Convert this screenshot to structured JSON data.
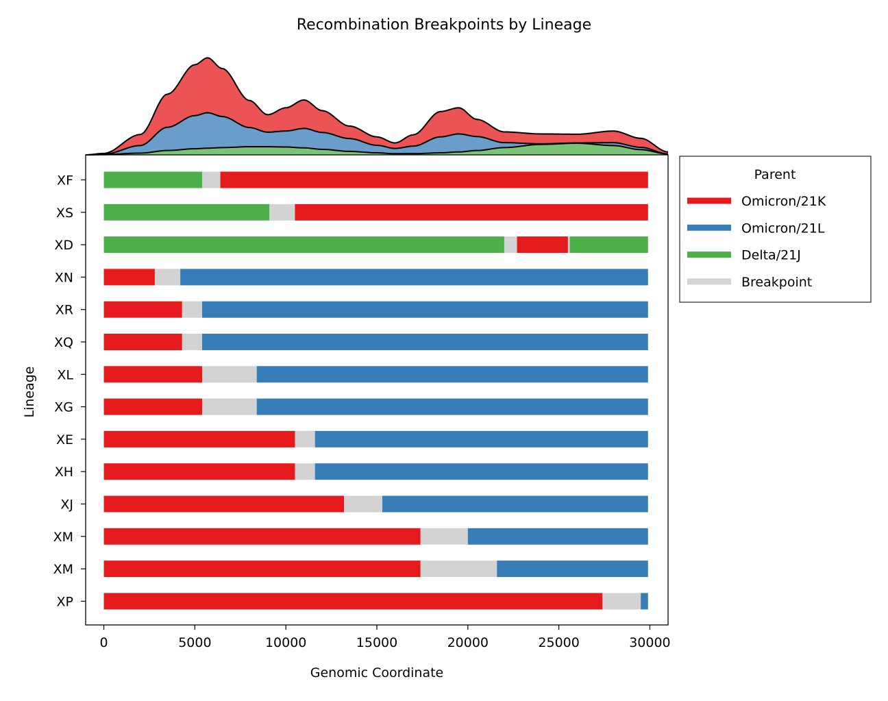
{
  "chart_data": {
    "type": "bar",
    "orientation": "horizontal-stacked",
    "title": "Recombination Breakpoints by Lineage",
    "xlabel": "Genomic Coordinate",
    "ylabel": "Lineage",
    "xlim": [
      -1000,
      31000
    ],
    "xticks": [
      0,
      5000,
      10000,
      15000,
      20000,
      25000,
      30000
    ],
    "grid": false,
    "legend": {
      "title": "Parent",
      "placement": "outside-right",
      "entries": [
        {
          "key": "21K",
          "label": "Omicron/21K"
        },
        {
          "key": "21L",
          "label": "Omicron/21L"
        },
        {
          "key": "21J",
          "label": "Delta/21J"
        },
        {
          "key": "bp",
          "label": "Breakpoint"
        }
      ]
    },
    "colors": {
      "21K": "#e41a1c",
      "21L": "#377eb8",
      "21J": "#4daf4a",
      "bp": "#d3d3d3"
    },
    "lineages": [
      {
        "name": "XF",
        "segments": [
          {
            "parent": "21J",
            "start": 0,
            "end": 5400
          },
          {
            "parent": "bp",
            "start": 5400,
            "end": 6400
          },
          {
            "parent": "21K",
            "start": 6400,
            "end": 29900
          }
        ]
      },
      {
        "name": "XS",
        "segments": [
          {
            "parent": "21J",
            "start": 0,
            "end": 9100
          },
          {
            "parent": "bp",
            "start": 9100,
            "end": 10500
          },
          {
            "parent": "21K",
            "start": 10500,
            "end": 29900
          }
        ]
      },
      {
        "name": "XD",
        "segments": [
          {
            "parent": "21J",
            "start": 0,
            "end": 22000
          },
          {
            "parent": "bp",
            "start": 22000,
            "end": 22700
          },
          {
            "parent": "21K",
            "start": 22700,
            "end": 25500
          },
          {
            "parent": "bp",
            "start": 25500,
            "end": 25600
          },
          {
            "parent": "21J",
            "start": 25600,
            "end": 29900
          }
        ]
      },
      {
        "name": "XN",
        "segments": [
          {
            "parent": "21K",
            "start": 0,
            "end": 2800
          },
          {
            "parent": "bp",
            "start": 2800,
            "end": 4200
          },
          {
            "parent": "21L",
            "start": 4200,
            "end": 29900
          }
        ]
      },
      {
        "name": "XR",
        "segments": [
          {
            "parent": "21K",
            "start": 0,
            "end": 4300
          },
          {
            "parent": "bp",
            "start": 4300,
            "end": 5400
          },
          {
            "parent": "21L",
            "start": 5400,
            "end": 29900
          }
        ]
      },
      {
        "name": "XQ",
        "segments": [
          {
            "parent": "21K",
            "start": 0,
            "end": 4300
          },
          {
            "parent": "bp",
            "start": 4300,
            "end": 5400
          },
          {
            "parent": "21L",
            "start": 5400,
            "end": 29900
          }
        ]
      },
      {
        "name": "XL",
        "segments": [
          {
            "parent": "21K",
            "start": 0,
            "end": 5400
          },
          {
            "parent": "bp",
            "start": 5400,
            "end": 8400
          },
          {
            "parent": "21L",
            "start": 8400,
            "end": 29900
          }
        ]
      },
      {
        "name": "XG",
        "segments": [
          {
            "parent": "21K",
            "start": 0,
            "end": 5400
          },
          {
            "parent": "bp",
            "start": 5400,
            "end": 8400
          },
          {
            "parent": "21L",
            "start": 8400,
            "end": 29900
          }
        ]
      },
      {
        "name": "XE",
        "segments": [
          {
            "parent": "21K",
            "start": 0,
            "end": 10500
          },
          {
            "parent": "bp",
            "start": 10500,
            "end": 11600
          },
          {
            "parent": "21L",
            "start": 11600,
            "end": 29900
          }
        ]
      },
      {
        "name": "XH",
        "segments": [
          {
            "parent": "21K",
            "start": 0,
            "end": 10500
          },
          {
            "parent": "bp",
            "start": 10500,
            "end": 11600
          },
          {
            "parent": "21L",
            "start": 11600,
            "end": 29900
          }
        ]
      },
      {
        "name": "XJ",
        "segments": [
          {
            "parent": "21K",
            "start": 0,
            "end": 13200
          },
          {
            "parent": "bp",
            "start": 13200,
            "end": 15300
          },
          {
            "parent": "21L",
            "start": 15300,
            "end": 29900
          }
        ]
      },
      {
        "name": "XM",
        "segments": [
          {
            "parent": "21K",
            "start": 0,
            "end": 17400
          },
          {
            "parent": "bp",
            "start": 17400,
            "end": 20000
          },
          {
            "parent": "21L",
            "start": 20000,
            "end": 29900
          }
        ]
      },
      {
        "name": "XM",
        "segments": [
          {
            "parent": "21K",
            "start": 0,
            "end": 17400
          },
          {
            "parent": "bp",
            "start": 17400,
            "end": 21600
          },
          {
            "parent": "21L",
            "start": 21600,
            "end": 29900
          }
        ]
      },
      {
        "name": "XP",
        "segments": [
          {
            "parent": "21K",
            "start": 0,
            "end": 27400
          },
          {
            "parent": "bp",
            "start": 27400,
            "end": 29500
          },
          {
            "parent": "21L",
            "start": 29500,
            "end": 29900
          }
        ]
      }
    ],
    "density": {
      "type": "area",
      "stacked": true,
      "x": [
        -1000,
        0,
        2000,
        3500,
        5000,
        5700,
        6500,
        8000,
        9000,
        10000,
        11000,
        12000,
        13500,
        15000,
        16000,
        17000,
        18500,
        19500,
        20500,
        22000,
        24000,
        26000,
        28000,
        29500,
        31000
      ],
      "series": [
        {
          "key": "21J",
          "values": [
            0.0,
            0.01,
            0.06,
            0.15,
            0.21,
            0.23,
            0.25,
            0.28,
            0.28,
            0.27,
            0.24,
            0.19,
            0.12,
            0.07,
            0.04,
            0.04,
            0.07,
            0.1,
            0.15,
            0.25,
            0.36,
            0.4,
            0.32,
            0.18,
            0.03
          ]
        },
        {
          "key": "21L",
          "values": [
            0.0,
            0.01,
            0.26,
            0.8,
            1.14,
            1.22,
            1.07,
            0.66,
            0.5,
            0.55,
            0.67,
            0.58,
            0.44,
            0.26,
            0.18,
            0.26,
            0.55,
            0.62,
            0.48,
            0.17,
            0.02,
            0.01,
            0.1,
            0.08,
            0.0
          ]
        },
        {
          "key": "21K",
          "values": [
            0.0,
            0.03,
            0.38,
            1.14,
            1.75,
            1.89,
            1.65,
            0.93,
            0.6,
            0.8,
            0.98,
            0.75,
            0.43,
            0.29,
            0.19,
            0.39,
            0.87,
            0.9,
            0.59,
            0.37,
            0.34,
            0.3,
            0.4,
            0.31,
            0.07
          ]
        }
      ],
      "ylim": [
        0,
        4.1
      ]
    }
  }
}
